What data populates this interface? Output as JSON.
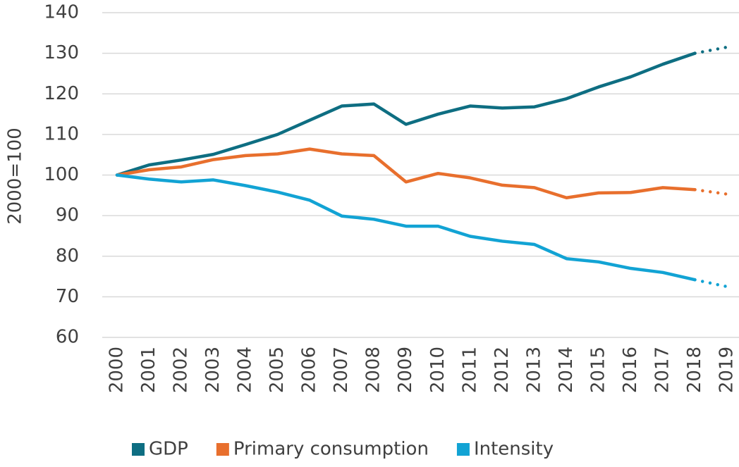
{
  "chart_data": {
    "type": "line",
    "categories": [
      "2000",
      "2001",
      "2002",
      "2003",
      "2004",
      "2005",
      "2006",
      "2007",
      "2008",
      "2009",
      "2010",
      "2011",
      "2012",
      "2013",
      "2014",
      "2015",
      "2016",
      "2017",
      "2018",
      "2019"
    ],
    "y_label": "2000=100",
    "ylim": [
      60,
      140
    ],
    "yticks": [
      60,
      70,
      80,
      90,
      100,
      110,
      120,
      130,
      140
    ],
    "grid": true,
    "dotted_after": "2018",
    "legend": "bottom",
    "series": [
      {
        "name": "GDP",
        "color": "#0e6e82",
        "values": [
          100,
          102.5,
          103.7,
          105.1,
          107.5,
          110,
          113.5,
          117,
          117.5,
          112.5,
          115,
          117,
          116.5,
          116.8,
          118.8,
          121.7,
          124.2,
          127.3,
          130,
          131.5
        ]
      },
      {
        "name": "Primary consumption",
        "color": "#e86f2d",
        "values": [
          100,
          101.3,
          102,
          103.8,
          104.8,
          105.2,
          106.4,
          105.2,
          104.8,
          98.3,
          100.4,
          99.3,
          97.5,
          96.9,
          94.4,
          95.6,
          95.7,
          96.9,
          96.4,
          95.3
        ]
      },
      {
        "name": "Intensity",
        "color": "#12a3d4",
        "values": [
          100,
          99,
          98.3,
          98.8,
          97.4,
          95.8,
          93.8,
          89.9,
          89.1,
          87.4,
          87.4,
          84.9,
          83.7,
          82.9,
          79.4,
          78.6,
          77,
          76,
          74.2,
          72.5
        ]
      }
    ]
  }
}
